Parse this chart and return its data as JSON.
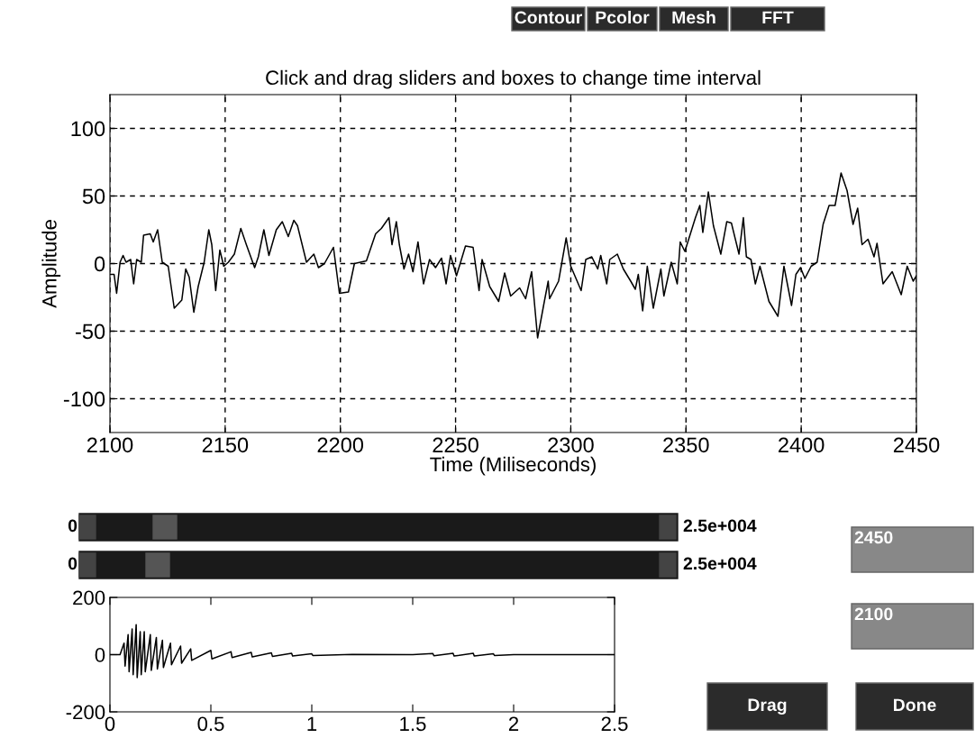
{
  "chart_data": [
    {
      "type": "line",
      "title": "Click and drag sliders and boxes to change time interval",
      "xlabel": "Time (Miliseconds)",
      "ylabel": "Amplitude",
      "color": "#000000",
      "x": [
        2100,
        2101.8,
        2102.9,
        2104.4,
        2105.7,
        2107.0,
        2109.0,
        2110.3,
        2111.6,
        2113.6,
        2114.6,
        2117.5,
        2118.8,
        2120.7,
        2122.7,
        2125.3,
        2127.9,
        2131.2,
        2132.9,
        2134.4,
        2136.4,
        2138.3,
        2140.9,
        2142.9,
        2144.2,
        2145.9,
        2147.7,
        2149.4,
        2151.4,
        2154.0,
        2156.8,
        2159.2,
        2162.8,
        2164.4,
        2166.8,
        2169.0,
        2172.2,
        2174.8,
        2177.4,
        2179.8,
        2181.4,
        2185.3,
        2188.5,
        2190.5,
        2193.1,
        2197.0,
        2199.6,
        2203.5,
        2206.1,
        2211.3,
        2215.3,
        2217.8,
        2221.1,
        2222.4,
        2224.3,
        2225.6,
        2227.6,
        2229.6,
        2231.5,
        2233.7,
        2236.1,
        2238.7,
        2241.3,
        2243.9,
        2245.9,
        2247.8,
        2250.4,
        2254.3,
        2257.6,
        2260.2,
        2261.5,
        2264.8,
        2268.7,
        2271.3,
        2273.9,
        2277.8,
        2280.4,
        2283.0,
        2285.6,
        2288.2,
        2290.2,
        2290.8,
        2294.7,
        2298.0,
        2300.0,
        2304.5,
        2306.5,
        2309.1,
        2311.7,
        2313.0,
        2315.6,
        2316.9,
        2320.2,
        2322.8,
        2326.0,
        2328.0,
        2329.3,
        2331.2,
        2333.2,
        2335.8,
        2339.1,
        2340.4,
        2343.6,
        2346.2,
        2347.5,
        2349.5,
        2350.8,
        2354.1,
        2356.0,
        2357.3,
        2359.7,
        2361.9,
        2365.1,
        2367.7,
        2369.7,
        2373.0,
        2374.9,
        2376.2,
        2378.2,
        2380.1,
        2382.1,
        2386.0,
        2389.9,
        2392.5,
        2395.8,
        2397.7,
        2399.7,
        2401.6,
        2404.3,
        2406.9,
        2409.5,
        2412.1,
        2414.7,
        2417.3,
        2419.9,
        2422.5,
        2424.5,
        2426.4,
        2429.0,
        2431.6,
        2432.9,
        2435.5,
        2439.5,
        2443.4,
        2446.0,
        2448.6,
        2450
      ],
      "values": [
        -8,
        -8,
        -22,
        1,
        6,
        1,
        3,
        -15,
        3,
        1,
        21,
        22,
        16,
        25,
        1,
        -2,
        -33,
        -27,
        -4,
        -10,
        -36,
        -17,
        1,
        25,
        14,
        -20,
        10,
        -2,
        1,
        7,
        26,
        14,
        -3,
        5,
        25,
        6,
        25,
        31,
        20,
        32,
        28,
        1,
        7,
        -3,
        0,
        12,
        -22,
        -21,
        0,
        2,
        22,
        26,
        34,
        14,
        31,
        14,
        -4,
        7,
        -6,
        16,
        -15,
        3,
        -3,
        4,
        -15,
        6,
        -9,
        13,
        12,
        -20,
        3,
        -17,
        -28,
        -7,
        -24,
        -18,
        -26,
        -6,
        -55,
        -31,
        -13,
        -26,
        -13,
        19,
        -2,
        -20,
        3,
        5,
        -4,
        6,
        -15,
        3,
        7,
        -4,
        -13,
        -19,
        -8,
        -35,
        -2,
        -33,
        -4,
        -24,
        1,
        -15,
        16,
        9,
        16,
        34,
        43,
        23,
        53,
        28,
        7,
        31,
        30,
        7,
        34,
        5,
        3,
        -15,
        -2,
        -28,
        -39,
        -2,
        -31,
        -8,
        -3,
        -11,
        -2,
        1,
        29,
        43,
        43,
        67,
        54,
        29,
        41,
        14,
        18,
        5,
        15,
        -15,
        -6,
        -23,
        -2,
        -13,
        -9
      ],
      "xlim": [
        2100,
        2450
      ],
      "ylim": [
        -125,
        125
      ],
      "xticks": [
        2100,
        2150,
        2200,
        2250,
        2300,
        2350,
        2400,
        2450
      ],
      "yticks": [
        -100,
        -50,
        0,
        50,
        100
      ],
      "grid": true,
      "line_style": "solid",
      "marker": "none"
    },
    {
      "type": "line",
      "color": "#000000",
      "x": [
        0,
        0.05,
        0.07,
        0.075,
        0.09,
        0.095,
        0.11,
        0.115,
        0.13,
        0.135,
        0.15,
        0.155,
        0.17,
        0.175,
        0.2,
        0.205,
        0.23,
        0.235,
        0.26,
        0.265,
        0.3,
        0.305,
        0.35,
        0.355,
        0.4,
        0.405,
        0.5,
        0.505,
        0.6,
        0.605,
        0.7,
        0.705,
        0.8,
        0.805,
        0.9,
        0.905,
        1.0,
        1.005,
        1.2,
        1.5,
        1.6,
        1.605,
        1.7,
        1.705,
        1.8,
        1.805,
        1.9,
        1.905,
        2.0,
        2.5
      ],
      "values": [
        0,
        0,
        40,
        -40,
        70,
        -60,
        90,
        -70,
        105,
        -80,
        80,
        -70,
        80,
        -60,
        70,
        -55,
        60,
        -50,
        50,
        -45,
        40,
        -35,
        30,
        -30,
        20,
        -20,
        15,
        -15,
        10,
        -10,
        8,
        -8,
        6,
        -6,
        5,
        -5,
        3,
        -3,
        1,
        0,
        4,
        -4,
        5,
        -5,
        5,
        -5,
        3,
        -3,
        0,
        0
      ],
      "xlim": [
        0,
        2.5
      ],
      "ylim": [
        -200,
        200
      ],
      "xticks": [
        0,
        0.5,
        1,
        1.5,
        2,
        2.5
      ],
      "yticks": [
        -200,
        0,
        200
      ],
      "grid": false,
      "line_style": "solid",
      "marker": "none"
    },
    {
      "type": "other",
      "annotations": [
        "Contour",
        "Pcolor",
        "Mesh",
        "FFT",
        "0",
        "2.5e+004",
        "0",
        "2.5e+004",
        "2450",
        "2100",
        "Drag",
        "Done"
      ]
    }
  ]
}
